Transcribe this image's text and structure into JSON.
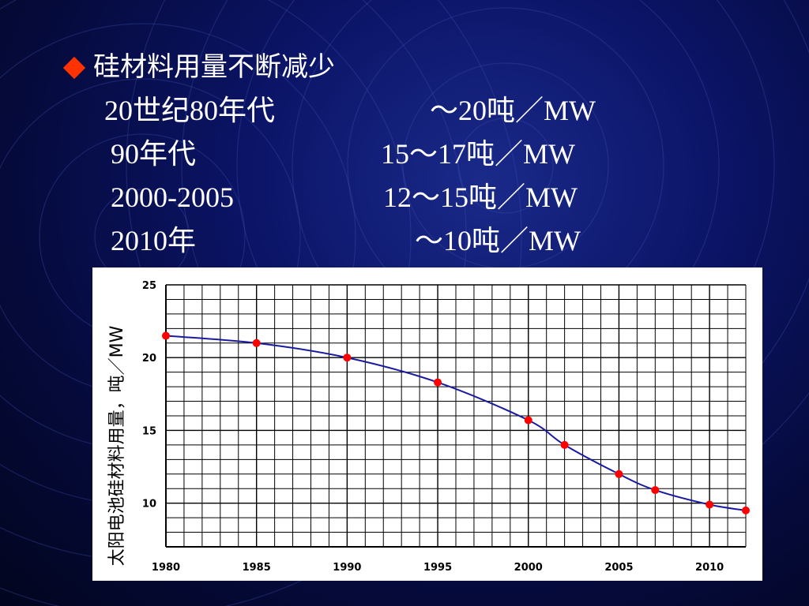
{
  "slide": {
    "heading": "硅材料用量不断减少",
    "rows": [
      {
        "period": "20世纪80年代",
        "amount": "～20吨／MW"
      },
      {
        "period": "90年代",
        "amount": "15～17吨／MW"
      },
      {
        "period": "2000-2005",
        "amount": "12～15吨／MW"
      },
      {
        "period": "2010年",
        "amount": "～10吨／MW"
      }
    ],
    "colors": {
      "bullet": "#ff3300",
      "line": "#1a1aa0",
      "marker": "#ff0000"
    }
  },
  "chart_data": {
    "type": "line",
    "title": "",
    "xlabel": "",
    "ylabel": "太阳电池硅材料用量，吨／MW",
    "xlim": [
      1980,
      2012
    ],
    "ylim": [
      7,
      25
    ],
    "xticks": [
      1980,
      1985,
      1990,
      1995,
      2000,
      2005,
      2010
    ],
    "yticks": [
      10,
      15,
      20,
      25
    ],
    "grid": true,
    "series": [
      {
        "x": [
          1980,
          1985,
          1990,
          1995,
          2000,
          2002,
          2005,
          2007,
          2010,
          2012
        ],
        "y": [
          21.5,
          21.0,
          20.0,
          18.3,
          15.7,
          14.0,
          12.0,
          10.9,
          9.9,
          9.5
        ]
      }
    ]
  }
}
